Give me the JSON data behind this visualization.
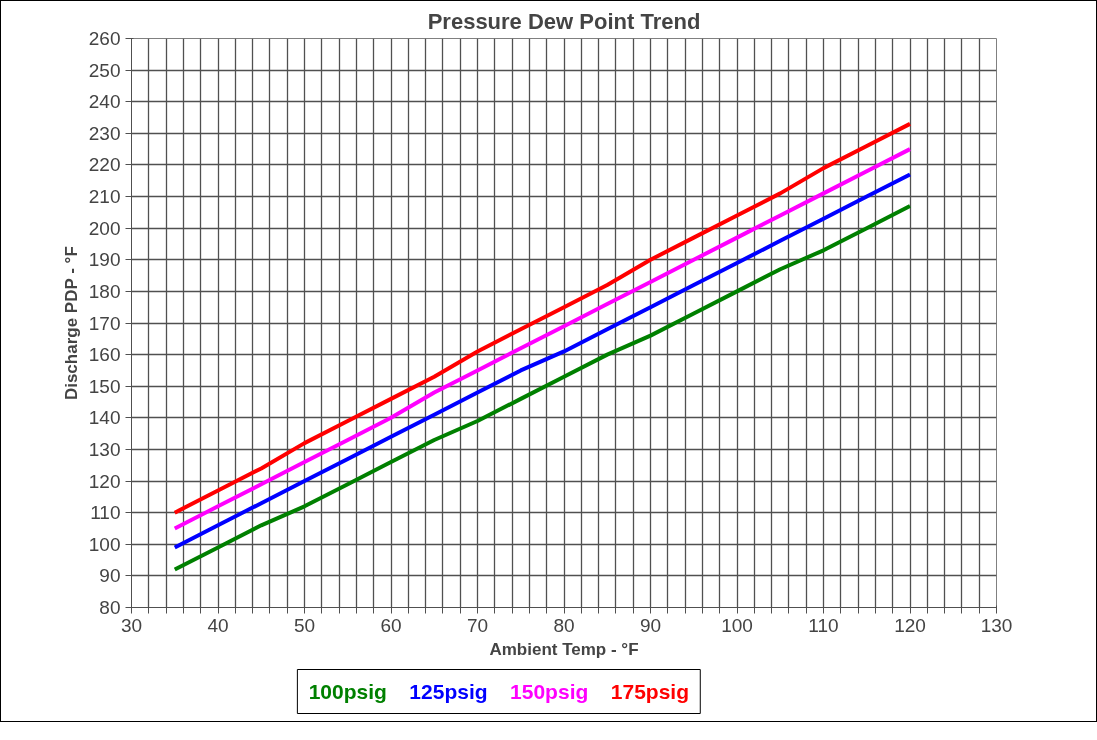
{
  "chart_data": {
    "type": "line",
    "title": "Pressure Dew Point Trend",
    "xlabel": "Ambient Temp - °F",
    "ylabel": "Discharge PDP - °F",
    "x": [
      35,
      40,
      45,
      50,
      55,
      60,
      65,
      70,
      75,
      80,
      85,
      90,
      95,
      100,
      105,
      110,
      115,
      120
    ],
    "series": [
      {
        "name": "100psig",
        "color": "#008000",
        "values": [
          92,
          99,
          106,
          112,
          119,
          126,
          133,
          139,
          146,
          153,
          160,
          166,
          173,
          180,
          187,
          193,
          200,
          207
        ]
      },
      {
        "name": "125psig",
        "color": "#0000ff",
        "values": [
          99,
          106,
          113,
          120,
          127,
          134,
          141,
          148,
          155,
          161,
          168,
          175,
          182,
          189,
          196,
          203,
          210,
          217
        ]
      },
      {
        "name": "150psig",
        "color": "#ff00ff",
        "values": [
          105,
          112,
          119,
          126,
          133,
          140,
          148,
          155,
          162,
          169,
          176,
          183,
          190,
          197,
          204,
          211,
          218,
          225
        ]
      },
      {
        "name": "175psig",
        "color": "#ff0000",
        "values": [
          110,
          117,
          124,
          132,
          139,
          146,
          153,
          161,
          168,
          175,
          182,
          190,
          197,
          204,
          211,
          219,
          226,
          233
        ]
      }
    ],
    "xlim": [
      30,
      130
    ],
    "xticks": [
      30,
      {
        "value": 32,
        "label": null
      },
      {
        "value": 34,
        "label": null
      },
      {
        "value": 36,
        "label": null
      },
      {
        "value": 38,
        "label": null
      },
      40,
      {
        "value": 42,
        "label": null
      },
      {
        "value": 44,
        "label": null
      },
      {
        "value": 46,
        "label": null
      },
      {
        "value": 48,
        "label": null
      },
      50,
      {
        "value": 52,
        "label": null
      },
      {
        "value": 54,
        "label": null
      },
      {
        "value": 56,
        "label": null
      },
      {
        "value": 58,
        "label": null
      },
      60,
      {
        "value": 62,
        "label": null
      },
      {
        "value": 64,
        "label": null
      },
      {
        "value": 66,
        "label": null
      },
      {
        "value": 68,
        "label": null
      },
      70,
      {
        "value": 72,
        "label": null
      },
      {
        "value": 74,
        "label": null
      },
      {
        "value": 76,
        "label": null
      },
      {
        "value": 78,
        "label": null
      },
      80,
      {
        "value": 82,
        "label": null
      },
      {
        "value": 84,
        "label": null
      },
      {
        "value": 86,
        "label": null
      },
      {
        "value": 88,
        "label": null
      },
      90,
      {
        "value": 92,
        "label": null
      },
      {
        "value": 94,
        "label": null
      },
      {
        "value": 96,
        "label": null
      },
      {
        "value": 98,
        "label": null
      },
      100,
      {
        "value": 102,
        "label": null
      },
      {
        "value": 104,
        "label": null
      },
      {
        "value": 106,
        "label": null
      },
      {
        "value": 108,
        "label": null
      },
      110,
      {
        "value": 112,
        "label": null
      },
      {
        "value": 114,
        "label": null
      },
      {
        "value": 116,
        "label": null
      },
      {
        "value": 118,
        "label": null
      },
      120,
      {
        "value": 122,
        "label": null
      },
      {
        "value": 124,
        "label": null
      },
      {
        "value": 126,
        "label": null
      },
      {
        "value": 128,
        "label": null
      },
      130
    ],
    "ylim": [
      80,
      260
    ],
    "yticks": [
      80,
      90,
      100,
      110,
      120,
      130,
      140,
      150,
      160,
      170,
      180,
      190,
      200,
      210,
      220,
      230,
      240,
      250,
      260
    ],
    "grid": true,
    "legend": "bottom",
    "marker": "none",
    "line_style": "solid"
  }
}
